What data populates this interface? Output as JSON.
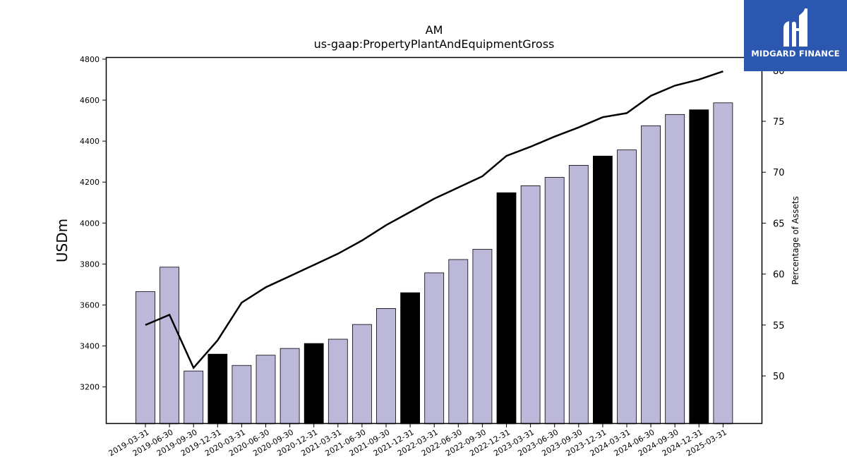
{
  "brand": {
    "name": "MIDGARD FINANCE",
    "icon": "midgard-logo-icon",
    "background": "#2b57b0"
  },
  "chart_data": {
    "type": "bar",
    "title": "AM",
    "subtitle": "us-gaap:PropertyPlantAndEquipmentGross",
    "ylabel": "USDm",
    "y2label": "Percentage of Assets",
    "ylim": [
      3020,
      4810
    ],
    "y2lim": [
      45.3,
      81.3
    ],
    "yticks": [
      3200,
      3400,
      3600,
      3800,
      4000,
      4200,
      4400,
      4600,
      4800
    ],
    "y2ticks": [
      50,
      55,
      60,
      65,
      70,
      75,
      80
    ],
    "categories": [
      "2019-03-31",
      "2019-06-30",
      "2019-09-30",
      "2019-12-31",
      "2020-03-31",
      "2020-06-30",
      "2020-09-30",
      "2020-12-31",
      "2021-03-31",
      "2021-06-30",
      "2021-09-30",
      "2021-12-31",
      "2022-03-31",
      "2022-06-30",
      "2022-09-30",
      "2022-12-31",
      "2023-03-31",
      "2023-06-30",
      "2023-09-30",
      "2023-12-31",
      "2024-03-31",
      "2024-06-30",
      "2024-09-30",
      "2024-12-31",
      "2025-03-31"
    ],
    "series": [
      {
        "type": "bar",
        "axis": "left",
        "values": [
          3665,
          3785,
          3278,
          3360,
          3305,
          3355,
          3388,
          3412,
          3433,
          3505,
          3583,
          3660,
          3757,
          3822,
          3872,
          4148,
          4182,
          4223,
          4282,
          4327,
          4357,
          4475,
          4530,
          4553,
          4587
        ],
        "highlight": [
          false,
          false,
          false,
          true,
          false,
          false,
          false,
          true,
          false,
          false,
          false,
          true,
          false,
          false,
          false,
          true,
          false,
          false,
          false,
          true,
          false,
          false,
          false,
          true,
          false
        ]
      },
      {
        "type": "line",
        "axis": "right",
        "values": [
          55.0,
          56.0,
          50.8,
          53.5,
          57.2,
          58.7,
          59.8,
          60.9,
          62.0,
          63.3,
          64.8,
          66.1,
          67.4,
          68.5,
          69.6,
          71.6,
          72.5,
          73.5,
          74.4,
          75.4,
          75.8,
          77.5,
          78.5,
          79.1,
          79.9
        ]
      }
    ],
    "colors": {
      "bar": "#bcb8d9",
      "bar_highlight": "#000000",
      "line": "#000000"
    },
    "grid": false,
    "legend": "none"
  }
}
